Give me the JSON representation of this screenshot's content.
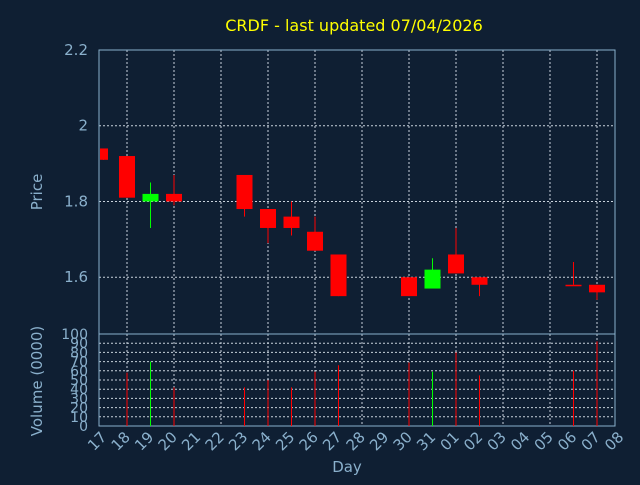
{
  "chart_data": {
    "type": "candlestick",
    "title": "CRDF - last updated 07/04/2026",
    "xlabel": "Day",
    "ylabel": "Price",
    "volume_label": "Volume (0000)",
    "ylim": [
      1.45,
      2.2
    ],
    "yticks": [
      1.6,
      1.8,
      2,
      2.2
    ],
    "ytick_labels": [
      "1.6",
      "1.8",
      "2",
      "2.2"
    ],
    "volume_ylim": [
      0,
      100
    ],
    "volume_ticks": [
      0,
      10,
      20,
      30,
      40,
      50,
      60,
      70,
      80,
      90,
      100
    ],
    "volume_tick_labels": [
      "0",
      "10",
      "20",
      "30",
      "40",
      "50",
      "60",
      "70",
      "80",
      "90",
      "100"
    ],
    "x_ticks": [
      "17",
      "18",
      "19",
      "20",
      "21",
      "22",
      "23",
      "24",
      "25",
      "26",
      "27",
      "28",
      "29",
      "30",
      "31",
      "01",
      "02",
      "03",
      "04",
      "05",
      "06",
      "07",
      "08"
    ],
    "up_color": "#00ff00",
    "down_color": "#ff0000",
    "grid": true,
    "candles": [
      {
        "x": "17",
        "open": 1.94,
        "close": 1.91,
        "high": 1.94,
        "low": 1.91,
        "volume": 0
      },
      {
        "x": "18",
        "open": 1.92,
        "close": 1.81,
        "high": 1.92,
        "low": 1.81,
        "volume": 58
      },
      {
        "x": "19",
        "open": 1.8,
        "close": 1.82,
        "high": 1.85,
        "low": 1.73,
        "volume": 70
      },
      {
        "x": "20",
        "open": 1.82,
        "close": 1.8,
        "high": 1.87,
        "low": 1.79,
        "volume": 42
      },
      {
        "x": "23",
        "open": 1.87,
        "close": 1.78,
        "high": 1.87,
        "low": 1.76,
        "volume": 42
      },
      {
        "x": "24",
        "open": 1.78,
        "close": 1.73,
        "high": 1.78,
        "low": 1.69,
        "volume": 50
      },
      {
        "x": "25",
        "open": 1.76,
        "close": 1.73,
        "high": 1.8,
        "low": 1.71,
        "volume": 42
      },
      {
        "x": "26",
        "open": 1.72,
        "close": 1.67,
        "high": 1.76,
        "low": 1.67,
        "volume": 59
      },
      {
        "x": "27",
        "open": 1.66,
        "close": 1.55,
        "high": 1.66,
        "low": 1.55,
        "volume": 66
      },
      {
        "x": "30",
        "open": 1.6,
        "close": 1.55,
        "high": 1.6,
        "low": 1.55,
        "volume": 69
      },
      {
        "x": "31",
        "open": 1.57,
        "close": 1.62,
        "high": 1.65,
        "low": 1.57,
        "volume": 59
      },
      {
        "x": "01",
        "open": 1.66,
        "close": 1.61,
        "high": 1.73,
        "low": 1.61,
        "volume": 80
      },
      {
        "x": "02",
        "open": 1.6,
        "close": 1.58,
        "high": 1.6,
        "low": 1.55,
        "volume": 55
      },
      {
        "x": "06",
        "open": 1.58,
        "close": 1.58,
        "high": 1.64,
        "low": 1.58,
        "volume": 60
      },
      {
        "x": "07",
        "open": 1.58,
        "close": 1.56,
        "high": 1.58,
        "low": 1.54,
        "volume": 92
      }
    ]
  }
}
